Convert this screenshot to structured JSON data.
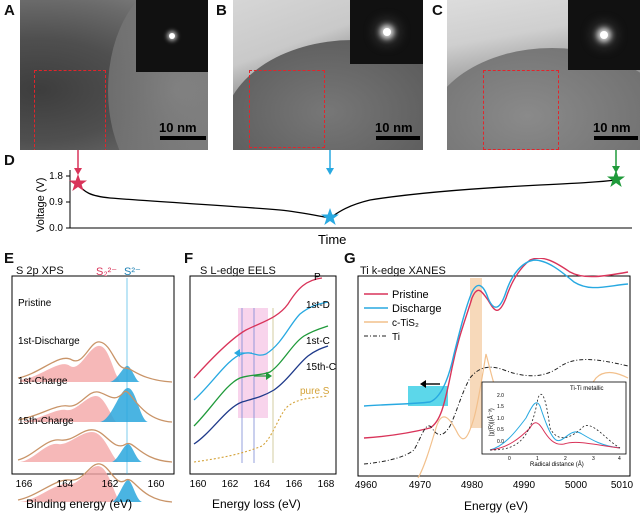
{
  "panels": {
    "A": {
      "letter": "A",
      "scale": "10 nm"
    },
    "B": {
      "letter": "B",
      "scale": "10 nm"
    },
    "C": {
      "letter": "C",
      "scale": "10 nm"
    },
    "D": {
      "letter": "D",
      "ylabel": "Voltage (V)",
      "yticks": [
        "1.8",
        "0.9",
        "0.0"
      ],
      "xlabel": "Time"
    },
    "E": {
      "letter": "E",
      "title": "S 2p XPS",
      "peak1": "S₂²⁻",
      "peak2": "S²⁻",
      "rows": [
        "Pristine",
        "1st-Discharge",
        "1st-Charge",
        "15th-Charge"
      ],
      "xticks": [
        "166",
        "164",
        "162",
        "160"
      ],
      "xlabel": "Binding energy (eV)"
    },
    "F": {
      "letter": "F",
      "title": "S L-edge EELS",
      "curves": [
        "P",
        "1st-D",
        "1st-C",
        "15th-C",
        "pure S"
      ],
      "xticks": [
        "160",
        "162",
        "164",
        "166",
        "168"
      ],
      "xlabel": "Energy loss (eV)"
    },
    "G": {
      "letter": "G",
      "title": "Ti k-edge XANES",
      "legend": [
        "Pristine",
        "Discharge",
        "c-TiS₂",
        "Ti"
      ],
      "xticks": [
        "4960",
        "4970",
        "4980",
        "4990",
        "5000",
        "5010"
      ],
      "xlabel": "Energy (eV)",
      "inset": {
        "ylabel": "|χ(R)|(Å⁻³)",
        "yticks": [
          "2.0",
          "1.5",
          "1.0",
          "0.5",
          "0.0"
        ],
        "xticks": [
          "0",
          "1",
          "2",
          "3",
          "4"
        ],
        "xlabel": "Radical distance (Å)",
        "annotation": "Ti-Ti metallic"
      }
    }
  },
  "colors": {
    "pristine": "#d9345a",
    "discharge": "#28a9e1",
    "ctis2": "#f2c08c",
    "ti": "#222222",
    "s22_fill": "#f4a6a6",
    "s2_fill": "#2aa7dd",
    "roi": "#e2242b",
    "star_green": "#1f9a3a"
  }
}
